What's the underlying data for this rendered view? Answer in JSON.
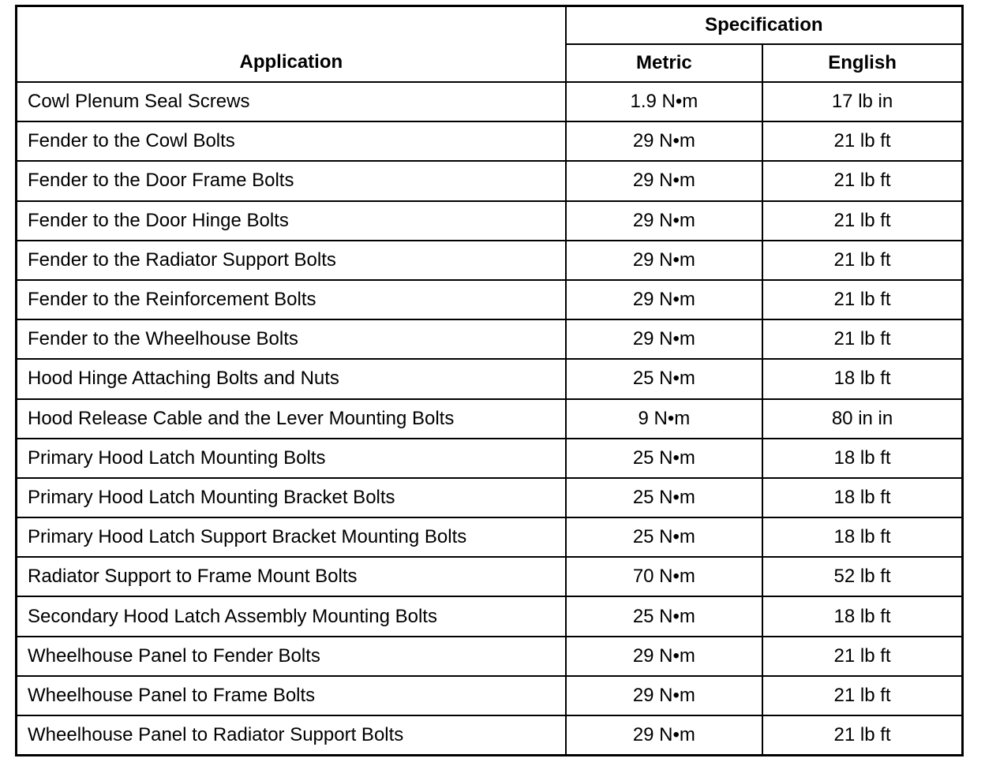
{
  "header": {
    "application": "Application",
    "specification": "Specification",
    "metric": "Metric",
    "english": "English"
  },
  "rows": [
    {
      "application": "Cowl Plenum Seal Screws",
      "metric": "1.9 N•m",
      "english": "17 lb in"
    },
    {
      "application": "Fender to the Cowl Bolts",
      "metric": "29 N•m",
      "english": "21 lb ft"
    },
    {
      "application": "Fender to the Door Frame Bolts",
      "metric": "29 N•m",
      "english": "21 lb ft"
    },
    {
      "application": "Fender to the Door Hinge Bolts",
      "metric": "29 N•m",
      "english": "21 lb ft"
    },
    {
      "application": "Fender to the Radiator Support Bolts",
      "metric": "29 N•m",
      "english": "21 lb ft"
    },
    {
      "application": "Fender to the Reinforcement Bolts",
      "metric": "29 N•m",
      "english": "21 lb ft"
    },
    {
      "application": "Fender to the Wheelhouse Bolts",
      "metric": "29 N•m",
      "english": "21 lb ft"
    },
    {
      "application": "Hood Hinge Attaching Bolts and Nuts",
      "metric": "25 N•m",
      "english": "18 lb ft"
    },
    {
      "application": "Hood Release Cable and the Lever Mounting Bolts",
      "metric": "9 N•m",
      "english": "80 in in"
    },
    {
      "application": "Primary Hood Latch Mounting Bolts",
      "metric": "25 N•m",
      "english": "18 lb ft"
    },
    {
      "application": "Primary Hood Latch Mounting Bracket Bolts",
      "metric": "25 N•m",
      "english": "18 lb ft"
    },
    {
      "application": "Primary Hood Latch Support Bracket Mounting Bolts",
      "metric": "25 N•m",
      "english": "18 lb ft"
    },
    {
      "application": "Radiator Support to Frame Mount Bolts",
      "metric": "70 N•m",
      "english": "52 lb ft"
    },
    {
      "application": "Secondary Hood Latch Assembly Mounting Bolts",
      "metric": "25 N•m",
      "english": "18 lb ft"
    },
    {
      "application": "Wheelhouse Panel to Fender Bolts",
      "metric": "29 N•m",
      "english": "21 lb ft"
    },
    {
      "application": "Wheelhouse Panel to Frame Bolts",
      "metric": "29 N•m",
      "english": "21 lb ft"
    },
    {
      "application": "Wheelhouse Panel to Radiator Support Bolts",
      "metric": "29 N•m",
      "english": "21 lb ft"
    }
  ]
}
